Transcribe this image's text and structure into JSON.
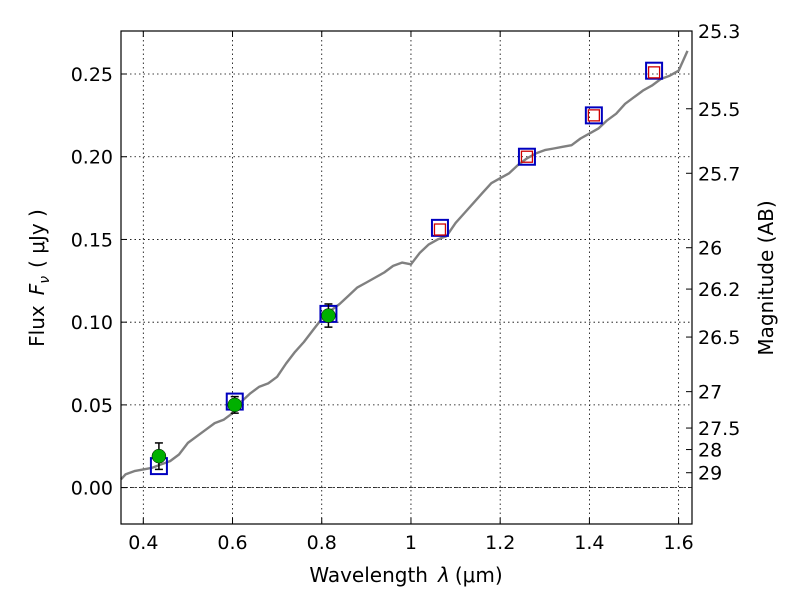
{
  "chart_data": {
    "type": "scatter",
    "title": "",
    "xlabel": "Wavelength",
    "xlabel_symbol": "λ",
    "xlabel_unit": "(μm)",
    "ylabel": "Flux",
    "ylabel_symbol": "F",
    "ylabel_subscript": "ν",
    "ylabel_unit": "( μJy )",
    "y2label": "Magnitude (AB)",
    "xlim": [
      0.35,
      1.63
    ],
    "ylim": [
      -0.022,
      0.276
    ],
    "grid": true,
    "xticks": [
      0.4,
      0.6,
      0.8,
      1.0,
      1.2,
      1.4,
      1.6
    ],
    "xtick_labels": [
      "0.4",
      "0.6",
      "0.8",
      "1",
      "1.2",
      "1.4",
      "1.6"
    ],
    "yticks": [
      0.0,
      0.05,
      0.1,
      0.15,
      0.2,
      0.25
    ],
    "ytick_labels": [
      "0.00",
      "0.05",
      "0.10",
      "0.15",
      "0.20",
      "0.25"
    ],
    "y2ticks": [
      {
        "label": "25.3",
        "flux": 0.276
      },
      {
        "label": "25.5",
        "flux": 0.229
      },
      {
        "label": "25.7",
        "flux": 0.19
      },
      {
        "label": "26",
        "flux": 0.145
      },
      {
        "label": "26.2",
        "flux": 0.12
      },
      {
        "label": "26.5",
        "flux": 0.091
      },
      {
        "label": "27",
        "flux": 0.058
      },
      {
        "label": "27.5",
        "flux": 0.036
      },
      {
        "label": "28",
        "flux": 0.023
      },
      {
        "label": "29",
        "flux": 0.009
      }
    ],
    "series": [
      {
        "name": "model spectrum",
        "kind": "line",
        "color": "#808080",
        "x": [
          0.35,
          0.36,
          0.37,
          0.38,
          0.4,
          0.42,
          0.44,
          0.46,
          0.48,
          0.5,
          0.52,
          0.54,
          0.56,
          0.58,
          0.6,
          0.62,
          0.64,
          0.66,
          0.68,
          0.7,
          0.72,
          0.74,
          0.76,
          0.78,
          0.8,
          0.82,
          0.84,
          0.86,
          0.88,
          0.9,
          0.92,
          0.94,
          0.96,
          0.98,
          1.0,
          1.02,
          1.04,
          1.06,
          1.08,
          1.1,
          1.12,
          1.14,
          1.16,
          1.18,
          1.2,
          1.22,
          1.24,
          1.26,
          1.28,
          1.3,
          1.32,
          1.34,
          1.36,
          1.38,
          1.4,
          1.42,
          1.44,
          1.46,
          1.48,
          1.5,
          1.52,
          1.54,
          1.56,
          1.58,
          1.6,
          1.62
        ],
        "y": [
          0.005,
          0.008,
          0.009,
          0.01,
          0.011,
          0.012,
          0.014,
          0.016,
          0.02,
          0.027,
          0.031,
          0.035,
          0.039,
          0.041,
          0.045,
          0.052,
          0.057,
          0.061,
          0.063,
          0.067,
          0.075,
          0.082,
          0.088,
          0.095,
          0.102,
          0.107,
          0.111,
          0.116,
          0.121,
          0.124,
          0.127,
          0.13,
          0.134,
          0.136,
          0.135,
          0.142,
          0.147,
          0.15,
          0.152,
          0.16,
          0.166,
          0.172,
          0.178,
          0.184,
          0.187,
          0.19,
          0.195,
          0.199,
          0.202,
          0.204,
          0.205,
          0.206,
          0.207,
          0.211,
          0.214,
          0.217,
          0.222,
          0.226,
          0.232,
          0.236,
          0.24,
          0.243,
          0.247,
          0.249,
          0.252,
          0.264
        ]
      },
      {
        "name": "blue squares",
        "kind": "marker",
        "marker": "square-large",
        "color": "#0000bf",
        "x": [
          0.435,
          0.605,
          0.815,
          1.065,
          1.26,
          1.41,
          1.545
        ],
        "y": [
          0.013,
          0.052,
          0.105,
          0.157,
          0.2,
          0.225,
          0.252
        ]
      },
      {
        "name": "red squares",
        "kind": "marker",
        "marker": "square-small",
        "color": "#d00000",
        "x": [
          1.065,
          1.26,
          1.41,
          1.545
        ],
        "y": [
          0.156,
          0.2,
          0.225,
          0.251
        ]
      },
      {
        "name": "green observations",
        "kind": "marker",
        "marker": "circle",
        "color": "#00b000",
        "x": [
          0.435,
          0.605,
          0.815
        ],
        "y": [
          0.019,
          0.05,
          0.104
        ],
        "err": [
          0.008,
          0.005,
          0.007
        ]
      }
    ]
  }
}
